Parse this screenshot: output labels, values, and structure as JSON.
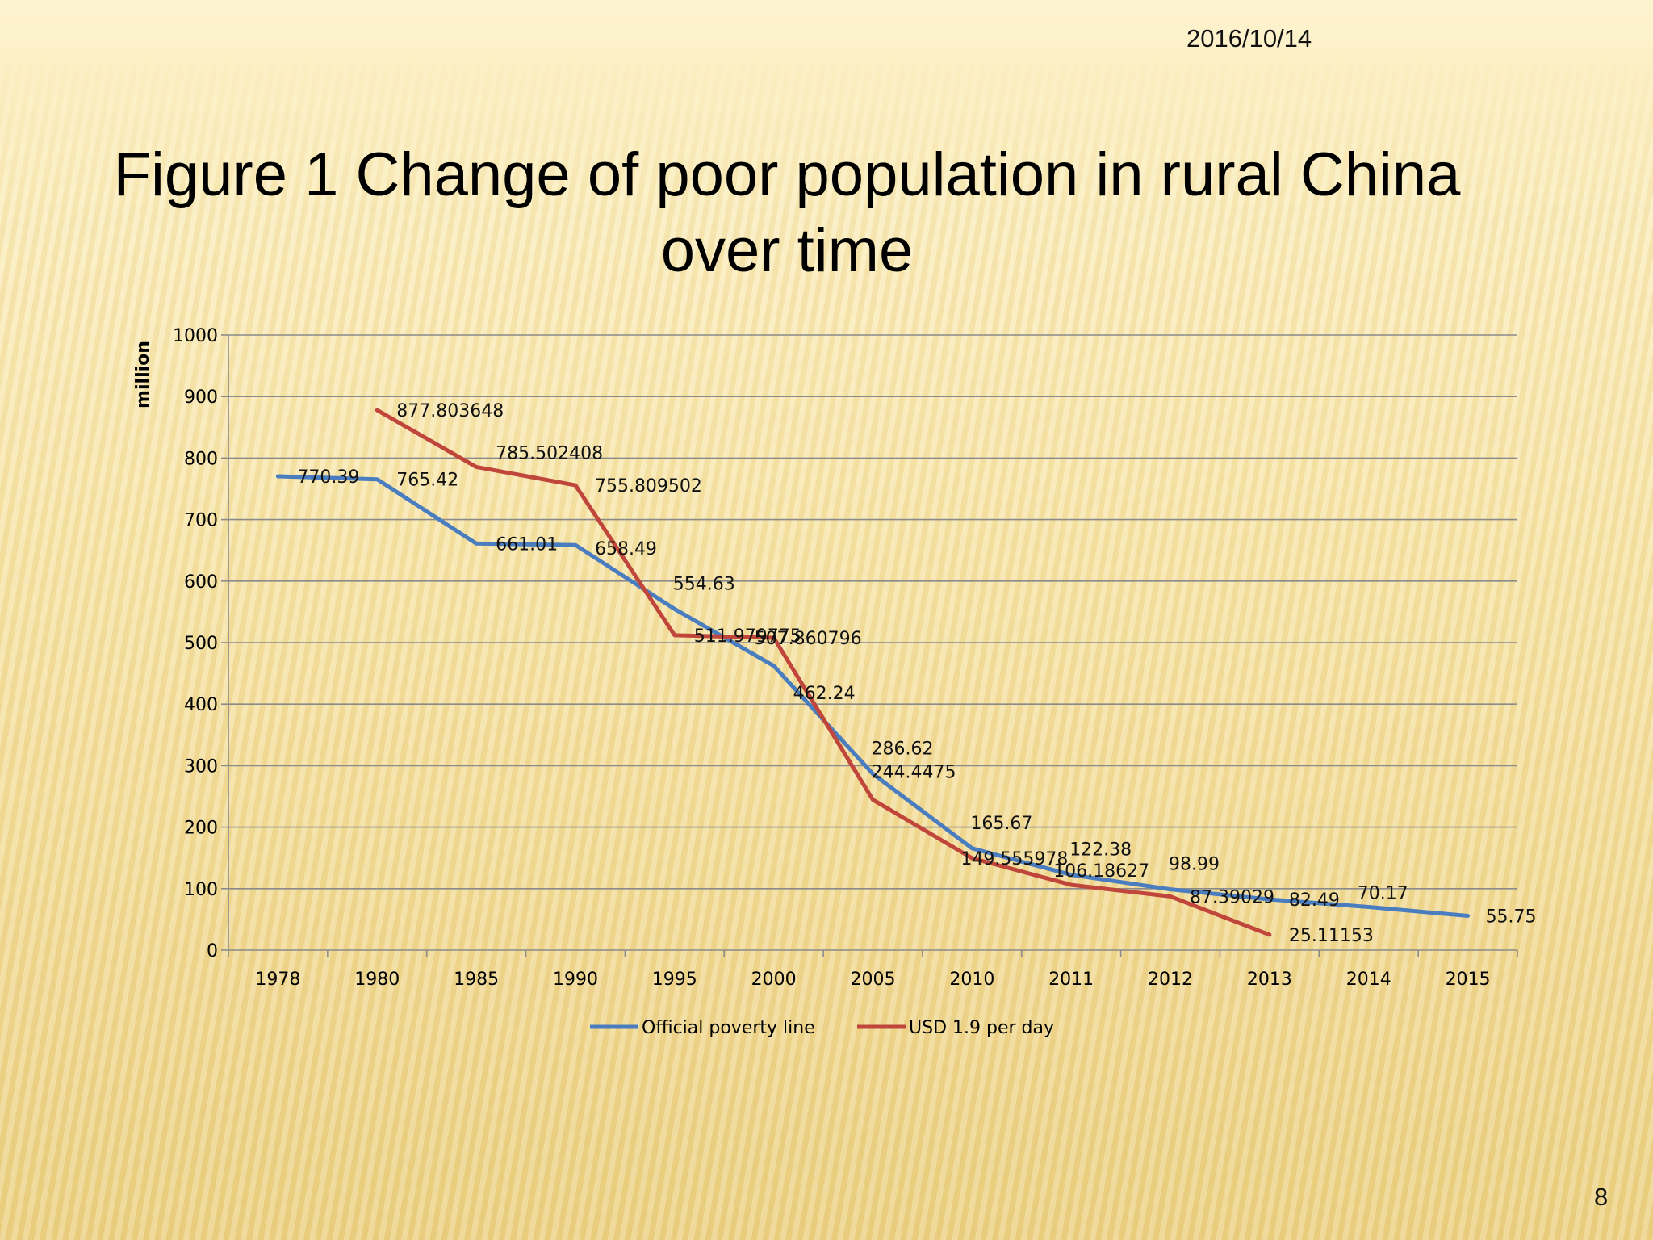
{
  "slide": {
    "date": "2016/10/14",
    "title_line1": "Figure 1  Change of poor population in rural China",
    "title_line2": "over time",
    "page_number": "8"
  },
  "chart_data": {
    "type": "line",
    "categories": [
      "1978",
      "1980",
      "1985",
      "1990",
      "1995",
      "2000",
      "2005",
      "2010",
      "2011",
      "2012",
      "2013",
      "2014",
      "2015"
    ],
    "ylabel": "million",
    "ylim": [
      0,
      1000
    ],
    "yticks": [
      0,
      100,
      200,
      300,
      400,
      500,
      600,
      700,
      800,
      900,
      1000
    ],
    "grid": true,
    "legend_position": "bottom",
    "series": [
      {
        "name": "Official poverty line",
        "color": "#4a7dbf",
        "values": [
          770.39,
          765.42,
          661.01,
          658.49,
          554.63,
          462.24,
          286.62,
          165.67,
          122.38,
          98.99,
          82.49,
          70.17,
          55.75
        ],
        "labels": [
          "770.39",
          "765.42",
          "661.01",
          "658.49",
          "554.63",
          "462.24",
          "286.62",
          "165.67",
          "122.38",
          "98.99",
          "82.49",
          "70.17",
          "55.75"
        ]
      },
      {
        "name": "USD 1.9 per day",
        "color": "#c0463c",
        "values": [
          null,
          877.803648,
          785.502408,
          755.809502,
          511.979775,
          507.860796,
          244.4475,
          149.555978,
          106.18627,
          87.39029,
          25.11153,
          null,
          null
        ],
        "labels": [
          null,
          "877.803648",
          "785.502408",
          "755.809502",
          "511.979775",
          "507.860796",
          "244.4475",
          "149.555978",
          "106.18627",
          "87.39029",
          "25.11153",
          null,
          null
        ]
      }
    ]
  }
}
